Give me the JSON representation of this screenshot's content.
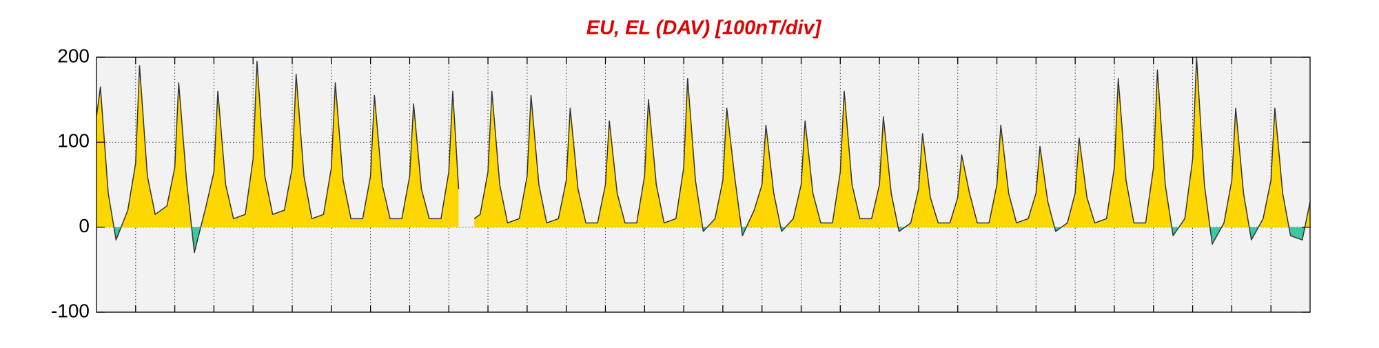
{
  "chart_data": {
    "type": "area",
    "title": "EU, EL (DAV)  [100nT/div]",
    "xlim": [
      0,
      31
    ],
    "xticks": [
      1,
      2,
      3,
      4,
      5,
      6,
      7,
      8,
      9,
      10,
      11,
      12,
      13,
      14,
      15,
      16,
      17,
      18,
      19,
      20,
      21,
      22,
      23,
      24,
      25,
      26,
      27,
      28,
      29,
      30
    ],
    "ylim": [
      -100,
      200
    ],
    "yticks": [
      -100,
      0,
      100,
      200
    ],
    "grid": true,
    "positive_color": "#ffd700",
    "negative_color": "#3cc8a0",
    "line_color": "#333333",
    "x": [
      0,
      0.1,
      0.3,
      0.5,
      0.8,
      1,
      1.1,
      1.3,
      1.5,
      1.8,
      2,
      2.1,
      2.3,
      2.5,
      2.8,
      3,
      3.1,
      3.3,
      3.5,
      3.8,
      4,
      4.1,
      4.3,
      4.5,
      4.8,
      5,
      5.1,
      5.3,
      5.5,
      5.8,
      6,
      6.1,
      6.3,
      6.5,
      6.8,
      7,
      7.1,
      7.3,
      7.5,
      7.8,
      8,
      8.1,
      8.3,
      8.5,
      8.8,
      9,
      9.1,
      9.25,
      9.5,
      9.65,
      9.8,
      10,
      10.1,
      10.3,
      10.5,
      10.8,
      11,
      11.1,
      11.3,
      11.5,
      11.8,
      12,
      12.1,
      12.3,
      12.5,
      12.8,
      13,
      13.1,
      13.3,
      13.5,
      13.8,
      14,
      14.1,
      14.3,
      14.5,
      14.8,
      15,
      15.1,
      15.3,
      15.5,
      15.8,
      16,
      16.1,
      16.3,
      16.5,
      16.8,
      17,
      17.1,
      17.3,
      17.5,
      17.8,
      18,
      18.1,
      18.3,
      18.5,
      18.8,
      19,
      19.1,
      19.3,
      19.5,
      19.8,
      20,
      20.1,
      20.3,
      20.5,
      20.8,
      21,
      21.1,
      21.3,
      21.5,
      21.8,
      22,
      22.1,
      22.3,
      22.5,
      22.8,
      23,
      23.1,
      23.3,
      23.5,
      23.8,
      24,
      24.1,
      24.3,
      24.5,
      24.8,
      25,
      25.1,
      25.3,
      25.5,
      25.8,
      26,
      26.1,
      26.3,
      26.5,
      26.8,
      27,
      27.1,
      27.3,
      27.5,
      27.8,
      28,
      28.1,
      28.3,
      28.5,
      28.8,
      29,
      29.1,
      29.3,
      29.5,
      29.8,
      30,
      30.1,
      30.3,
      30.5,
      30.8,
      31
    ],
    "values": [
      130,
      165,
      40,
      -15,
      20,
      75,
      190,
      60,
      15,
      25,
      70,
      170,
      55,
      -30,
      25,
      65,
      160,
      50,
      10,
      15,
      80,
      195,
      60,
      15,
      20,
      70,
      180,
      60,
      10,
      15,
      70,
      170,
      55,
      10,
      10,
      60,
      155,
      50,
      10,
      10,
      60,
      145,
      45,
      10,
      10,
      65,
      160,
      45,
      null,
      10,
      15,
      65,
      160,
      50,
      5,
      10,
      60,
      155,
      50,
      5,
      10,
      55,
      140,
      45,
      5,
      5,
      50,
      125,
      40,
      5,
      5,
      60,
      150,
      50,
      5,
      10,
      70,
      175,
      55,
      -5,
      10,
      55,
      140,
      60,
      -10,
      20,
      50,
      120,
      40,
      -5,
      10,
      50,
      125,
      40,
      5,
      5,
      65,
      160,
      50,
      10,
      10,
      50,
      130,
      40,
      -5,
      5,
      45,
      110,
      35,
      5,
      5,
      35,
      85,
      40,
      5,
      5,
      50,
      120,
      40,
      5,
      10,
      40,
      95,
      30,
      -5,
      5,
      40,
      105,
      35,
      5,
      10,
      70,
      175,
      55,
      5,
      5,
      70,
      185,
      50,
      -10,
      10,
      80,
      200,
      50,
      -20,
      5,
      55,
      140,
      40,
      -15,
      10,
      55,
      140,
      40,
      -10,
      -15,
      30
    ]
  }
}
